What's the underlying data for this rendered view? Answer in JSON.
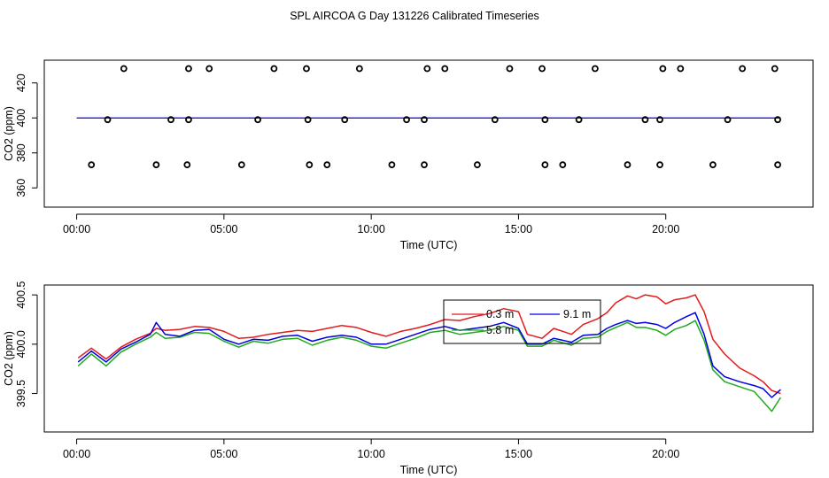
{
  "title": "SPL AIRCOA G  Day 131226  Calibrated Timeseries",
  "colors": {
    "red": "#e41a1c",
    "green": "#1faa1f",
    "blue": "#0000e0",
    "axis": "#000000"
  },
  "chart_data": [
    {
      "type": "scatter",
      "xlabel": "Time (UTC)",
      "ylabel": "CO2 (ppm)",
      "xlim": [
        -1.1,
        25.0
      ],
      "ylim": [
        349,
        433
      ],
      "x_ticks": [
        0,
        5,
        10,
        15,
        20
      ],
      "x_tick_labels": [
        "00:00",
        "05:00",
        "10:00",
        "15:00",
        "20:00"
      ],
      "y_ticks": [
        360,
        380,
        400,
        420
      ],
      "y_tick_labels": [
        "360",
        "380",
        "400",
        "420"
      ],
      "points_high": {
        "y": 428.2,
        "x": [
          1.6,
          3.8,
          4.5,
          6.7,
          7.8,
          9.6,
          11.9,
          12.5,
          14.7,
          15.8,
          17.6,
          19.9,
          20.5,
          22.6,
          23.7
        ]
      },
      "points_mid": {
        "y": 399.0,
        "x": [
          1.05,
          3.2,
          3.8,
          6.15,
          7.85,
          9.1,
          11.2,
          11.8,
          14.2,
          15.9,
          17.05,
          19.3,
          19.8,
          22.1,
          23.8
        ]
      },
      "points_low": {
        "y": 373.2,
        "x": [
          0.5,
          2.7,
          3.75,
          5.6,
          7.9,
          8.5,
          10.7,
          11.8,
          13.6,
          15.9,
          16.5,
          18.7,
          19.8,
          21.6,
          23.8
        ]
      },
      "line_flat": {
        "y": 400.0,
        "x_start": 0.0,
        "x_end": 23.9
      }
    },
    {
      "type": "line",
      "xlabel": "Time (UTC)",
      "ylabel": "CO2 (ppm)",
      "xlim": [
        -1.1,
        25.0
      ],
      "ylim": [
        399.11,
        400.6
      ],
      "x_ticks": [
        0,
        5,
        10,
        15,
        20
      ],
      "x_tick_labels": [
        "00:00",
        "05:00",
        "10:00",
        "15:00",
        "20:00"
      ],
      "y_ticks": [
        399.5,
        400.0,
        400.5
      ],
      "y_tick_labels": [
        "399.5",
        "400.0",
        "400.5"
      ],
      "legend": [
        "0.3 m",
        "9.1 m",
        "5.8 m"
      ],
      "series": [
        {
          "name": "0.3 m",
          "color": "red",
          "x": [
            0.05,
            0.5,
            1.0,
            1.5,
            2.0,
            2.5,
            2.7,
            3.0,
            3.5,
            4.0,
            4.5,
            5.0,
            5.5,
            6.0,
            6.5,
            7.0,
            7.5,
            8.0,
            8.5,
            9.0,
            9.5,
            10.0,
            10.5,
            11.0,
            11.5,
            12.0,
            12.5,
            13.0,
            13.5,
            14.0,
            14.5,
            15.0,
            15.3,
            15.8,
            16.2,
            16.8,
            17.2,
            17.7,
            18.0,
            18.3,
            18.7,
            19.0,
            19.3,
            19.7,
            20.0,
            20.3,
            20.7,
            21.0,
            21.3,
            21.6,
            22.0,
            22.5,
            23.0,
            23.3,
            23.6,
            23.9
          ],
          "values": [
            399.86,
            399.96,
            399.85,
            399.97,
            400.05,
            400.11,
            400.16,
            400.14,
            400.15,
            400.18,
            400.17,
            400.13,
            400.06,
            400.07,
            400.1,
            400.12,
            400.14,
            400.13,
            400.16,
            400.19,
            400.17,
            400.12,
            400.08,
            400.13,
            400.16,
            400.2,
            400.25,
            400.24,
            400.28,
            400.31,
            400.36,
            400.33,
            400.1,
            400.06,
            400.16,
            400.1,
            400.2,
            400.26,
            400.32,
            400.42,
            400.49,
            400.46,
            400.5,
            400.48,
            400.41,
            400.45,
            400.47,
            400.5,
            400.33,
            400.05,
            399.9,
            399.76,
            399.68,
            399.62,
            399.53,
            399.5
          ]
        },
        {
          "name": "5.8 m",
          "color": "green",
          "x": [
            0.05,
            0.5,
            1.0,
            1.5,
            2.0,
            2.5,
            2.7,
            3.0,
            3.5,
            4.0,
            4.5,
            5.0,
            5.5,
            6.0,
            6.5,
            7.0,
            7.5,
            8.0,
            8.5,
            9.0,
            9.5,
            10.0,
            10.5,
            11.0,
            11.5,
            12.0,
            12.5,
            13.0,
            13.5,
            14.0,
            14.5,
            15.0,
            15.3,
            15.8,
            16.2,
            16.8,
            17.2,
            17.7,
            18.0,
            18.3,
            18.7,
            19.0,
            19.3,
            19.7,
            20.0,
            20.3,
            20.7,
            21.0,
            21.3,
            21.6,
            22.0,
            22.5,
            23.0,
            23.3,
            23.6,
            23.9
          ],
          "values": [
            399.78,
            399.9,
            399.78,
            399.92,
            400.0,
            400.07,
            400.12,
            400.06,
            400.07,
            400.12,
            400.11,
            400.03,
            399.97,
            400.03,
            400.01,
            400.05,
            400.06,
            399.99,
            400.04,
            400.07,
            400.04,
            399.98,
            399.96,
            400.01,
            400.06,
            400.12,
            400.14,
            400.1,
            400.12,
            400.14,
            400.18,
            400.14,
            399.98,
            399.98,
            400.04,
            399.99,
            400.06,
            400.07,
            400.13,
            400.17,
            400.22,
            400.17,
            400.17,
            400.14,
            400.09,
            400.15,
            400.19,
            400.24,
            400.04,
            399.74,
            399.62,
            399.57,
            399.52,
            399.42,
            399.32,
            399.46
          ]
        },
        {
          "name": "9.1 m",
          "color": "blue",
          "x": [
            0.05,
            0.5,
            1.0,
            1.5,
            2.0,
            2.5,
            2.7,
            3.0,
            3.5,
            4.0,
            4.5,
            5.0,
            5.5,
            6.0,
            6.5,
            7.0,
            7.5,
            8.0,
            8.5,
            9.0,
            9.5,
            10.0,
            10.5,
            11.0,
            11.5,
            12.0,
            12.5,
            13.0,
            13.5,
            14.0,
            14.5,
            15.0,
            15.3,
            15.8,
            16.2,
            16.8,
            17.2,
            17.7,
            18.0,
            18.3,
            18.7,
            19.0,
            19.3,
            19.7,
            20.0,
            20.3,
            20.7,
            21.0,
            21.3,
            21.6,
            22.0,
            22.5,
            23.0,
            23.3,
            23.6,
            23.9
          ],
          "values": [
            399.82,
            399.93,
            399.82,
            399.95,
            400.02,
            400.1,
            400.22,
            400.1,
            400.08,
            400.14,
            400.15,
            400.05,
            400.0,
            400.05,
            400.04,
            400.08,
            400.09,
            400.03,
            400.07,
            400.09,
            400.07,
            400.0,
            400.0,
            400.05,
            400.1,
            400.15,
            400.18,
            400.14,
            400.16,
            400.18,
            400.22,
            400.16,
            400.0,
            400.0,
            400.06,
            400.02,
            400.09,
            400.1,
            400.16,
            400.2,
            400.24,
            400.21,
            400.22,
            400.2,
            400.16,
            400.22,
            400.28,
            400.32,
            400.1,
            399.78,
            399.67,
            399.62,
            399.58,
            399.55,
            399.46,
            399.54
          ]
        }
      ]
    }
  ]
}
